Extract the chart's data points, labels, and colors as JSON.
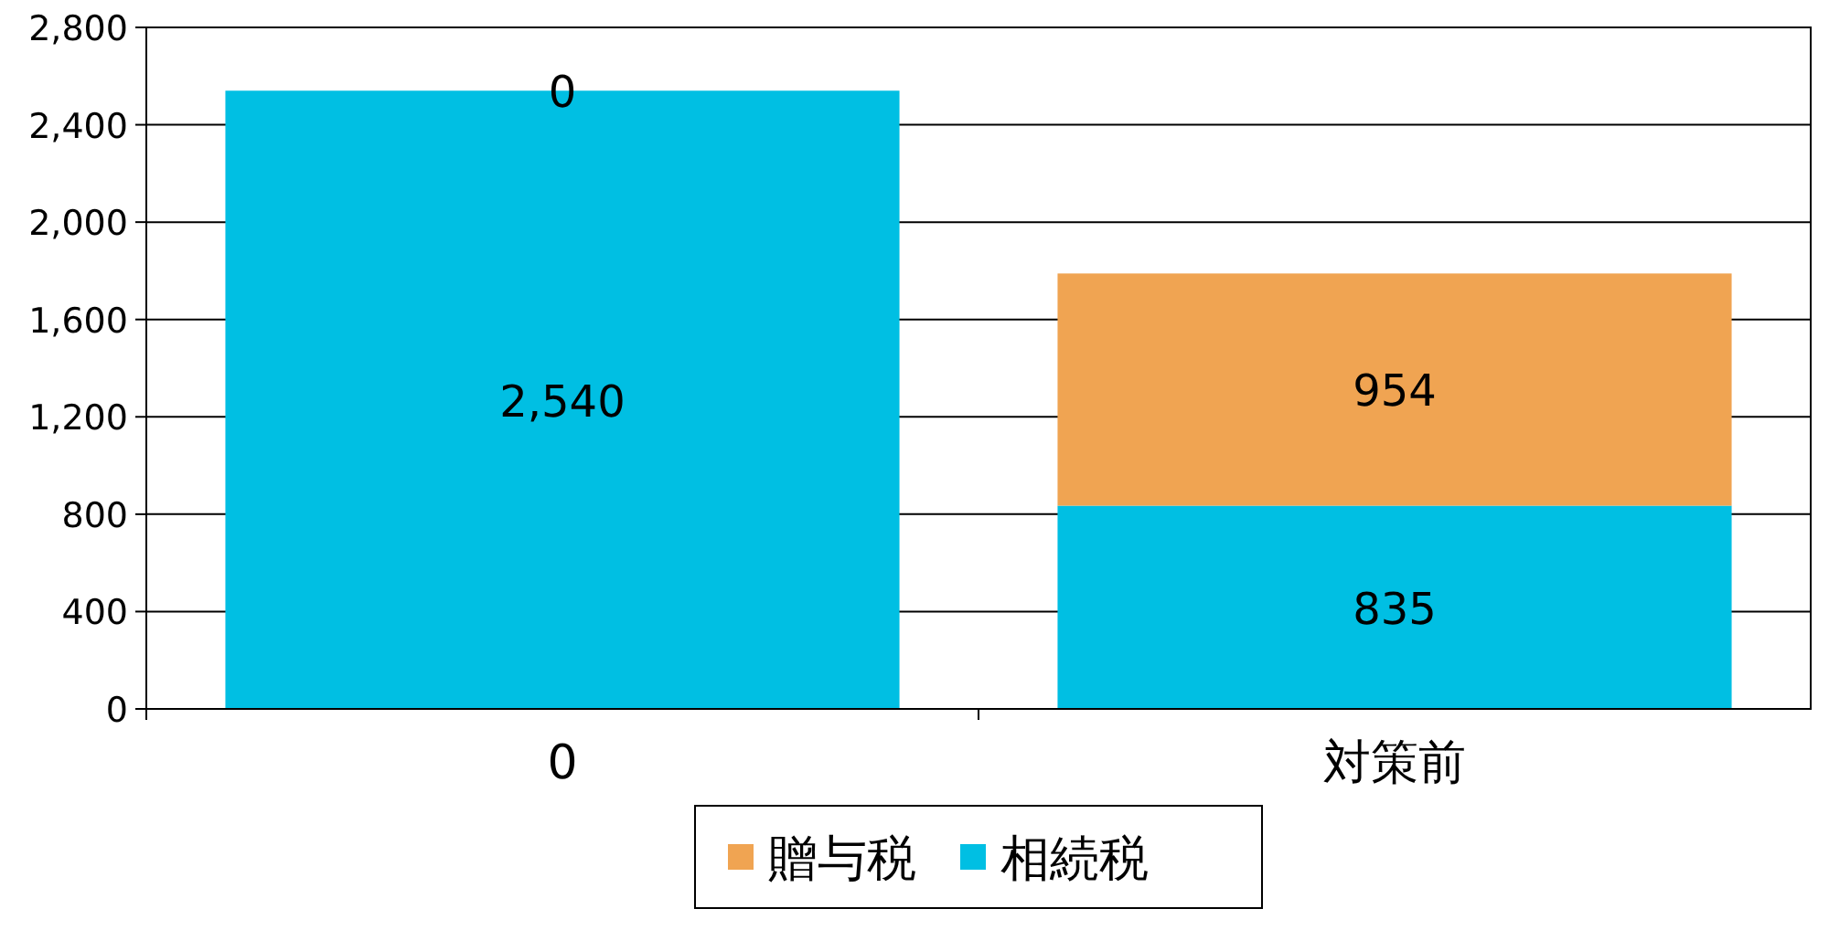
{
  "chart_data": {
    "type": "bar",
    "stacked": true,
    "categories": [
      "0",
      "対策前"
    ],
    "series": [
      {
        "name": "相続税",
        "color": "#00bfe3",
        "values": [
          2540,
          835
        ],
        "value_labels": [
          "2,540",
          "835"
        ]
      },
      {
        "name": "贈与税",
        "color": "#f0a452",
        "values": [
          0,
          954
        ],
        "value_labels": [
          "0",
          "954"
        ]
      }
    ],
    "ylim": [
      0,
      2800
    ],
    "yticks": [
      0,
      400,
      800,
      {
        "value": 1200,
        "label": "1,200"
      },
      {
        "value": 1600,
        "label": "1,600"
      },
      {
        "value": 2000,
        "label": "2,000"
      },
      {
        "value": 2400,
        "label": "2,400"
      },
      {
        "value": 2800,
        "label": "2,800"
      }
    ],
    "grid": "y",
    "legend": "bottom"
  }
}
